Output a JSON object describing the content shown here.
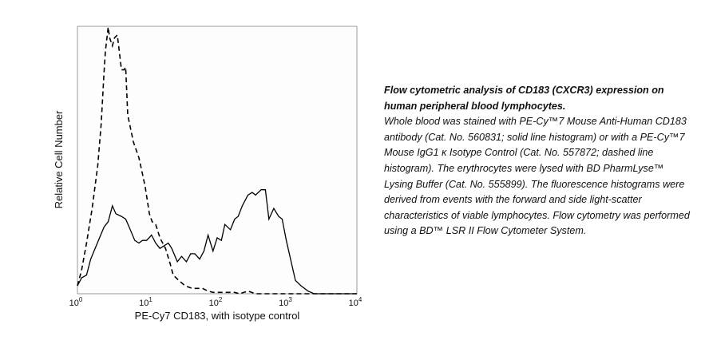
{
  "chart_data": {
    "type": "line",
    "xlabel": "PE-Cy7 CD183, with isotype control",
    "ylabel": "Relative Cell Number",
    "xscale": "log10",
    "xlim": [
      1,
      10000
    ],
    "ylim": [
      0,
      100
    ],
    "x_tick_labels": [
      {
        "base": "10",
        "exp": "0"
      },
      {
        "base": "10",
        "exp": "1"
      },
      {
        "base": "10",
        "exp": "2"
      },
      {
        "base": "10",
        "exp": "3"
      },
      {
        "base": "10",
        "exp": "4"
      }
    ],
    "grid": false,
    "series": [
      {
        "name": "CD183 (solid)",
        "style": "solid",
        "log10_x": [
          0,
          0.06,
          0.13,
          0.19,
          0.3,
          0.38,
          0.44,
          0.5,
          0.55,
          0.63,
          0.69,
          0.74,
          0.82,
          0.88,
          0.93,
          0.99,
          1.06,
          1.12,
          1.18,
          1.24,
          1.3,
          1.35,
          1.43,
          1.49,
          1.56,
          1.62,
          1.68,
          1.75,
          1.81,
          1.87,
          1.94,
          2,
          2.06,
          2.11,
          2.19,
          2.25,
          2.3,
          2.36,
          2.44,
          2.5,
          2.55,
          2.63,
          2.69,
          2.74,
          2.81,
          2.88,
          2.93,
          2.99,
          3.05,
          3.12,
          3.2,
          3.3,
          3.39,
          4
        ],
        "y": [
          3,
          6,
          7,
          13,
          20,
          25,
          27,
          33,
          30,
          29,
          28,
          25,
          20,
          19,
          20,
          20,
          22,
          19,
          17,
          18,
          19,
          17,
          12,
          14,
          12,
          15,
          15,
          13,
          16,
          22,
          16,
          21,
          20,
          26,
          24,
          28,
          29,
          33,
          37,
          38,
          37,
          39,
          39,
          28,
          32,
          29,
          28,
          20,
          13,
          5,
          3,
          1,
          0,
          0
        ]
      },
      {
        "name": "Isotype control (dashed)",
        "style": "dashed",
        "log10_x": [
          0,
          0.06,
          0.13,
          0.21,
          0.29,
          0.34,
          0.38,
          0.4,
          0.44,
          0.46,
          0.5,
          0.53,
          0.57,
          0.59,
          0.63,
          0.67,
          0.69,
          0.72,
          0.8,
          0.88,
          0.93,
          0.97,
          1.03,
          1.07,
          1.12,
          1.18,
          1.26,
          1.33,
          1.37,
          1.45,
          1.54,
          1.64,
          1.71,
          1.79,
          1.87,
          1.94,
          2.25,
          2.32,
          2.44,
          2.55,
          4
        ],
        "y": [
          3,
          9,
          19,
          32,
          48,
          64,
          83,
          91,
          100,
          96,
          93,
          96,
          97,
          93,
          84,
          84,
          85,
          67,
          57,
          51,
          45,
          40,
          30,
          27,
          26,
          21,
          17,
          11,
          7,
          5,
          3,
          2,
          2,
          2,
          1,
          0.5,
          0.5,
          0,
          1,
          0,
          0
        ]
      }
    ]
  },
  "caption": {
    "title": "Flow cytometric analysis of CD183 (CXCR3) expression on human peripheral blood lymphocytes.",
    "body": "Whole blood was stained with PE-Cy™7 Mouse Anti-Human CD183 antibody (Cat. No. 560831; solid line histogram) or with a PE-Cy™7 Mouse IgG1 κ Isotype Control (Cat. No. 557872; dashed line histogram). The erythrocytes were lysed with BD PharmLyse™ Lysing Buffer (Cat. No. 555899). The fluorescence histograms were derived from events with the forward and side light-scatter characteristics of viable lymphocytes. Flow cytometry was performed using a BD™ LSR II Flow Cytometer System."
  }
}
